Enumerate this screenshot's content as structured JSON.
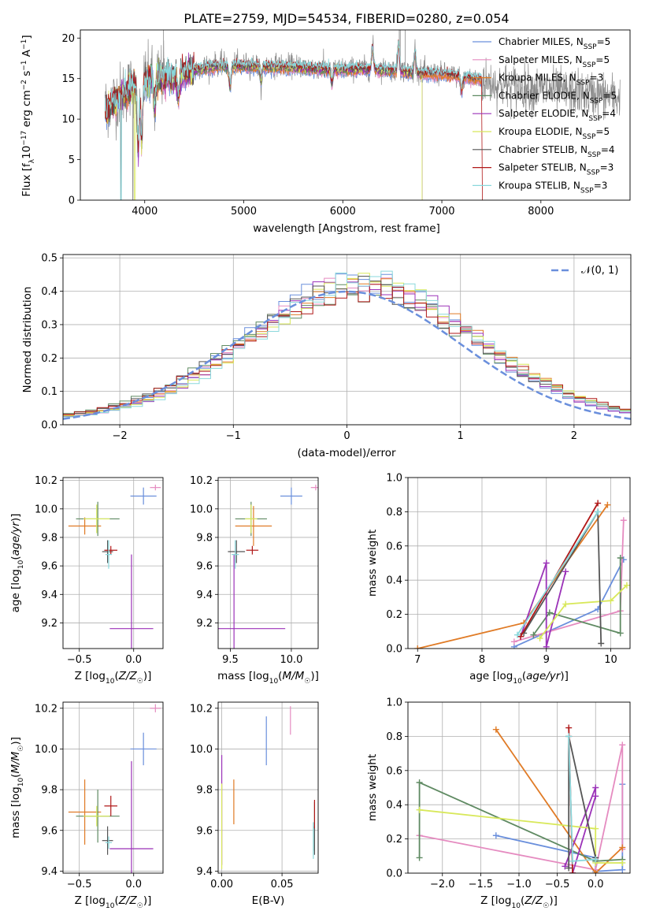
{
  "title": "PLATE=2759, MJD=54534, FIBERID=0280, z=0.054",
  "colors": {
    "Chabrier MILES": "#6a8fdc",
    "Salpeter MILES": "#e58bc0",
    "Kroupa MILES": "#e07b26",
    "Chabrier ELODIE": "#5f8a62",
    "Salpeter ELODIE": "#9b32b8",
    "Kroupa ELODIE": "#d8e85a",
    "Chabrier STELIB": "#555555",
    "Salpeter STELIB": "#b01818",
    "Kroupa STELIB": "#8ad8dc",
    "data": "#8a8a8a"
  },
  "chart_data": [
    {
      "type": "line",
      "name": "spectrum",
      "title": "PLATE=2759, MJD=54534, FIBERID=0280, z=0.054",
      "xlabel": "wavelength [Angstrom, rest frame]",
      "ylabel": "Flux [f_λ 10^-17 erg cm^-2 s^-1 A^-1]",
      "xlim": [
        3350,
        8900
      ],
      "ylim": [
        0,
        21
      ],
      "xticks": [
        4000,
        5000,
        6000,
        7000,
        8000
      ],
      "yticks": [
        0,
        5,
        10,
        15,
        20
      ],
      "legend_position": "top-right",
      "legend": [
        "Chabrier MILES, N_SSP=5",
        "Salpeter MILES, N_SSP=5",
        "Kroupa MILES, N_SSP=3",
        "Chabrier ELODIE, N_SSP=5",
        "Salpeter ELODIE, N_SSP=4",
        "Kroupa ELODIE, N_SSP=5",
        "Chabrier STELIB, N_SSP=4",
        "Salpeter STELIB, N_SSP=3",
        "Kroupa STELIB, N_SSP=3"
      ],
      "data_continuum": [
        [
          3600,
          11.5
        ],
        [
          3700,
          12.5
        ],
        [
          3800,
          13.5
        ],
        [
          3900,
          14.2
        ],
        [
          4000,
          14.8
        ],
        [
          4100,
          15.0
        ],
        [
          4200,
          15.4
        ],
        [
          4300,
          15.0
        ],
        [
          4400,
          15.8
        ],
        [
          4500,
          16.3
        ],
        [
          4700,
          16.8
        ],
        [
          4900,
          16.8
        ],
        [
          5200,
          16.7
        ],
        [
          5500,
          16.6
        ],
        [
          5800,
          16.4
        ],
        [
          6000,
          16.2
        ],
        [
          6300,
          16.3
        ],
        [
          6600,
          16.0
        ],
        [
          6800,
          15.7
        ],
        [
          7000,
          15.6
        ],
        [
          7200,
          15.2
        ],
        [
          7400,
          14.7
        ],
        [
          7600,
          14.2
        ],
        [
          7800,
          13.9
        ],
        [
          8000,
          13.6
        ],
        [
          8200,
          13.4
        ],
        [
          8400,
          13.2
        ],
        [
          8600,
          13.0
        ],
        [
          8800,
          12.6
        ]
      ],
      "model_continuum": [
        [
          3600,
          11.0
        ],
        [
          3700,
          12.0
        ],
        [
          3800,
          13.2
        ],
        [
          3900,
          14.0
        ],
        [
          4000,
          14.6
        ],
        [
          4100,
          14.9
        ],
        [
          4200,
          15.2
        ],
        [
          4300,
          15.2
        ],
        [
          4400,
          15.6
        ],
        [
          4500,
          16.0
        ],
        [
          4700,
          16.4
        ],
        [
          4900,
          16.5
        ],
        [
          5200,
          16.4
        ],
        [
          5500,
          16.3
        ],
        [
          5800,
          16.1
        ],
        [
          6000,
          16.1
        ],
        [
          6300,
          16.1
        ],
        [
          6600,
          15.8
        ],
        [
          6800,
          15.6
        ],
        [
          7000,
          15.5
        ],
        [
          7200,
          15.2
        ],
        [
          7400,
          14.8
        ]
      ]
    },
    {
      "type": "bar",
      "name": "residual histogram",
      "xlabel": "(data-model)/error",
      "ylabel": "Normed distribution",
      "xlim": [
        -2.5,
        2.5
      ],
      "ylim": [
        0,
        0.51
      ],
      "xticks": [
        -2,
        -1,
        0,
        1,
        2
      ],
      "yticks": [
        0.0,
        0.1,
        0.2,
        0.3,
        0.4,
        0.5
      ],
      "bin_width": 0.1,
      "legend": [
        "𝒩(0, 1)"
      ],
      "legend_position": "top-right"
    },
    {
      "type": "scatter",
      "name": "age vs Z",
      "xlabel": "Z [log10(Z/Z☉)]",
      "ylabel": "age [log10(age/yr)]",
      "xlim": [
        -0.65,
        0.27
      ],
      "ylim": [
        9.02,
        10.22
      ],
      "xticks": [
        -0.5,
        0.0
      ],
      "yticks": [
        9.2,
        9.4,
        9.6,
        9.8,
        10.0,
        10.2
      ],
      "points": [
        {
          "model": "Chabrier MILES",
          "x": 0.09,
          "y": 10.09,
          "xerr": 0.12,
          "yerr": 0.06
        },
        {
          "model": "Salpeter MILES",
          "x": 0.2,
          "y": 10.15,
          "xerr": 0.05,
          "yerr": 0.02
        },
        {
          "model": "Kroupa MILES",
          "x": -0.45,
          "y": 9.88,
          "xerr": 0.15,
          "yerr": 0.06
        },
        {
          "model": "Chabrier ELODIE",
          "x": -0.33,
          "y": 9.93,
          "xerr": 0.2,
          "yerr": 0.12
        },
        {
          "model": "Salpeter ELODIE",
          "x": -0.02,
          "y": 9.16,
          "xerr": 0.2,
          "yerr": 0.52
        },
        {
          "model": "Kroupa ELODIE",
          "x": -0.34,
          "y": 9.93,
          "xerr": 0.12,
          "yerr": 0.1
        },
        {
          "model": "Chabrier STELIB",
          "x": -0.24,
          "y": 9.7,
          "xerr": 0.05,
          "yerr": 0.08
        },
        {
          "model": "Salpeter STELIB",
          "x": -0.21,
          "y": 9.71,
          "xerr": 0.06,
          "yerr": 0.03
        },
        {
          "model": "Kroupa STELIB",
          "x": -0.23,
          "y": 9.68,
          "xerr": 0.03,
          "yerr": 0.1
        }
      ]
    },
    {
      "type": "scatter",
      "name": "age vs mass",
      "xlabel": "mass [log10(M/M☉)]",
      "ylabel": "",
      "xlim": [
        9.4,
        10.22
      ],
      "ylim": [
        9.02,
        10.22
      ],
      "xticks": [
        9.5,
        10.0
      ],
      "yticks": [
        9.2,
        9.4,
        9.6,
        9.8,
        10.0,
        10.2
      ],
      "points": [
        {
          "model": "Chabrier MILES",
          "x": 10.0,
          "y": 10.09,
          "xerr": 0.09,
          "yerr": 0.06
        },
        {
          "model": "Salpeter MILES",
          "x": 10.2,
          "y": 10.15,
          "xerr": 0.04,
          "yerr": 0.02
        },
        {
          "model": "Kroupa MILES",
          "x": 9.69,
          "y": 9.88,
          "xerr": 0.15,
          "yerr": 0.14
        },
        {
          "model": "Chabrier ELODIE",
          "x": 9.67,
          "y": 9.93,
          "xerr": 0.13,
          "yerr": 0.12
        },
        {
          "model": "Salpeter ELODIE",
          "x": 9.53,
          "y": 9.16,
          "xerr": 0.42,
          "yerr": 0.52
        },
        {
          "model": "Kroupa ELODIE",
          "x": 9.67,
          "y": 9.93,
          "xerr": 0.05,
          "yerr": 0.1
        },
        {
          "model": "Chabrier STELIB",
          "x": 9.55,
          "y": 9.7,
          "xerr": 0.07,
          "yerr": 0.08
        },
        {
          "model": "Salpeter STELIB",
          "x": 9.68,
          "y": 9.71,
          "xerr": 0.05,
          "yerr": 0.03
        },
        {
          "model": "Kroupa STELIB",
          "x": 9.54,
          "y": 9.68,
          "xerr": 0.03,
          "yerr": 0.1
        }
      ]
    },
    {
      "type": "line",
      "name": "mass weight vs age",
      "xlabel": "age [log10(age/yr)]",
      "ylabel": "mass weight",
      "xlim": [
        6.85,
        10.3
      ],
      "ylim": [
        0,
        1.0
      ],
      "xticks": [
        7,
        8,
        9,
        10
      ],
      "yticks": [
        0.0,
        0.2,
        0.4,
        0.6,
        0.8,
        1.0
      ],
      "series": [
        {
          "model": "Chabrier MILES",
          "points": [
            [
              8.5,
              0.01
            ],
            [
              9.8,
              0.23
            ],
            [
              10.2,
              0.52
            ]
          ]
        },
        {
          "model": "Salpeter MILES",
          "points": [
            [
              8.5,
              0.04
            ],
            [
              10.15,
              0.22
            ],
            [
              10.2,
              0.75
            ]
          ]
        },
        {
          "model": "Kroupa MILES",
          "points": [
            [
              7.0,
              0.0
            ],
            [
              8.65,
              0.15
            ],
            [
              9.95,
              0.84
            ]
          ]
        },
        {
          "model": "Chabrier ELODIE",
          "points": [
            [
              8.8,
              0.08
            ],
            [
              9.05,
              0.21
            ],
            [
              10.15,
              0.09
            ],
            [
              10.15,
              0.53
            ]
          ]
        },
        {
          "model": "Salpeter ELODIE",
          "points": [
            [
              8.6,
              0.07
            ],
            [
              9.0,
              0.5
            ],
            [
              9.0,
              0.01
            ],
            [
              9.3,
              0.45
            ]
          ]
        },
        {
          "model": "Kroupa ELODIE",
          "points": [
            [
              8.9,
              0.06
            ],
            [
              9.3,
              0.26
            ],
            [
              10.0,
              0.28
            ],
            [
              10.25,
              0.37
            ]
          ]
        },
        {
          "model": "Chabrier STELIB",
          "points": [
            [
              8.65,
              0.09
            ],
            [
              9.8,
              0.8
            ],
            [
              9.85,
              0.03
            ]
          ]
        },
        {
          "model": "Salpeter STELIB",
          "points": [
            [
              8.6,
              0.07
            ],
            [
              9.8,
              0.85
            ]
          ]
        },
        {
          "model": "Kroupa STELIB",
          "points": [
            [
              8.55,
              0.08
            ],
            [
              9.8,
              0.8
            ]
          ]
        }
      ]
    },
    {
      "type": "scatter",
      "name": "mass vs Z",
      "xlabel": "Z [log10(Z/Z☉)]",
      "ylabel": "mass [log10(M/M☉)]",
      "xlim": [
        -0.65,
        0.27
      ],
      "ylim": [
        9.39,
        10.23
      ],
      "xticks": [
        -0.5,
        0.0
      ],
      "yticks": [
        9.4,
        9.6,
        9.8,
        10.0,
        10.2
      ],
      "points": [
        {
          "model": "Chabrier MILES",
          "x": 0.09,
          "y": 10.0,
          "xerr": 0.12,
          "yerr": 0.08
        },
        {
          "model": "Salpeter MILES",
          "x": 0.2,
          "y": 10.2,
          "xerr": 0.05,
          "yerr": 0.02
        },
        {
          "model": "Kroupa MILES",
          "x": -0.45,
          "y": 9.69,
          "xerr": 0.15,
          "yerr": 0.16
        },
        {
          "model": "Chabrier ELODIE",
          "x": -0.33,
          "y": 9.67,
          "xerr": 0.2,
          "yerr": 0.13
        },
        {
          "model": "Salpeter ELODIE",
          "x": -0.02,
          "y": 9.51,
          "xerr": 0.2,
          "yerr": 0.43
        },
        {
          "model": "Kroupa ELODIE",
          "x": -0.34,
          "y": 9.67,
          "xerr": 0.12,
          "yerr": 0.05
        },
        {
          "model": "Chabrier STELIB",
          "x": -0.24,
          "y": 9.55,
          "xerr": 0.05,
          "yerr": 0.07
        },
        {
          "model": "Salpeter STELIB",
          "x": -0.21,
          "y": 9.72,
          "xerr": 0.06,
          "yerr": 0.05
        },
        {
          "model": "Kroupa STELIB",
          "x": -0.23,
          "y": 9.54,
          "xerr": 0.03,
          "yerr": 0.03
        }
      ]
    },
    {
      "type": "scatter",
      "name": "E(B-V)",
      "xlabel": "E(B-V)",
      "ylabel": "",
      "xlim": [
        -0.003,
        0.08
      ],
      "ylim": [
        9.39,
        10.23
      ],
      "xticks": [
        0.0,
        0.05
      ],
      "yticks": [
        9.4,
        9.6,
        9.8,
        10.0,
        10.2
      ],
      "points": [
        {
          "model": "Chabrier MILES",
          "x": 0.037,
          "y": 10.04,
          "yerr": 0.12
        },
        {
          "model": "Salpeter MILES",
          "x": 0.057,
          "y": 10.14,
          "yerr": 0.07
        },
        {
          "model": "Kroupa MILES",
          "x": 0.01,
          "y": 9.74,
          "yerr": 0.11
        },
        {
          "model": "Chabrier ELODIE",
          "x": 0.077,
          "y": 9.62,
          "yerr": 0.12
        },
        {
          "model": "Salpeter ELODIE",
          "x": 0.0,
          "y": 9.7,
          "yerr": 0.27
        },
        {
          "model": "Kroupa ELODIE",
          "x": 0.0,
          "y": 9.62,
          "yerr": 0.21
        },
        {
          "model": "Chabrier STELIB",
          "x": 0.077,
          "y": 9.55,
          "yerr": 0.07
        },
        {
          "model": "Salpeter STELIB",
          "x": 0.077,
          "y": 9.68,
          "yerr": 0.07
        },
        {
          "model": "Kroupa STELIB",
          "x": 0.076,
          "y": 9.55,
          "yerr": 0.09
        }
      ]
    },
    {
      "type": "line",
      "name": "mass weight vs Z",
      "xlabel": "Z [log10(Z/Z☉)]",
      "ylabel": "mass weight",
      "xlim": [
        -2.45,
        0.45
      ],
      "ylim": [
        0,
        1.0
      ],
      "xticks": [
        -2.0,
        -1.5,
        -1.0,
        -0.5,
        0.0
      ],
      "yticks": [
        0.0,
        0.2,
        0.4,
        0.6,
        0.8,
        1.0
      ],
      "series": [
        {
          "model": "Chabrier MILES",
          "points": [
            [
              -1.3,
              0.22
            ],
            [
              0.0,
              0.09
            ],
            [
              0.0,
              0.01
            ],
            [
              0.35,
              0.02
            ],
            [
              0.35,
              0.52
            ]
          ]
        },
        {
          "model": "Salpeter MILES",
          "points": [
            [
              -2.3,
              0.22
            ],
            [
              0.0,
              0.02
            ],
            [
              0.35,
              0.75
            ],
            [
              0.35,
              0.14
            ]
          ]
        },
        {
          "model": "Kroupa MILES",
          "points": [
            [
              -1.3,
              0.84
            ],
            [
              0.0,
              0.0
            ],
            [
              0.35,
              0.15
            ]
          ]
        },
        {
          "model": "Chabrier ELODIE",
          "points": [
            [
              -2.3,
              0.09
            ],
            [
              -2.3,
              0.53
            ],
            [
              0.0,
              0.07
            ],
            [
              0.35,
              0.08
            ]
          ]
        },
        {
          "model": "Salpeter ELODIE",
          "points": [
            [
              -0.4,
              0.04
            ],
            [
              0.0,
              0.5
            ],
            [
              0.0,
              0.45
            ],
            [
              -0.3,
              0.0
            ]
          ]
        },
        {
          "model": "Kroupa ELODIE",
          "points": [
            [
              -2.3,
              0.37
            ],
            [
              0.0,
              0.26
            ],
            [
              0.0,
              0.06
            ],
            [
              0.35,
              0.06
            ]
          ]
        },
        {
          "model": "Chabrier STELIB",
          "points": [
            [
              -0.35,
              0.03
            ],
            [
              -0.35,
              0.8
            ],
            [
              0.0,
              0.09
            ]
          ]
        },
        {
          "model": "Salpeter STELIB",
          "points": [
            [
              -0.35,
              0.85
            ],
            [
              -0.3,
              0.0
            ]
          ]
        },
        {
          "model": "Kroupa STELIB",
          "points": [
            [
              -0.35,
              0.8
            ],
            [
              -0.3,
              0.07
            ],
            [
              0.0,
              0.08
            ]
          ]
        }
      ]
    }
  ]
}
